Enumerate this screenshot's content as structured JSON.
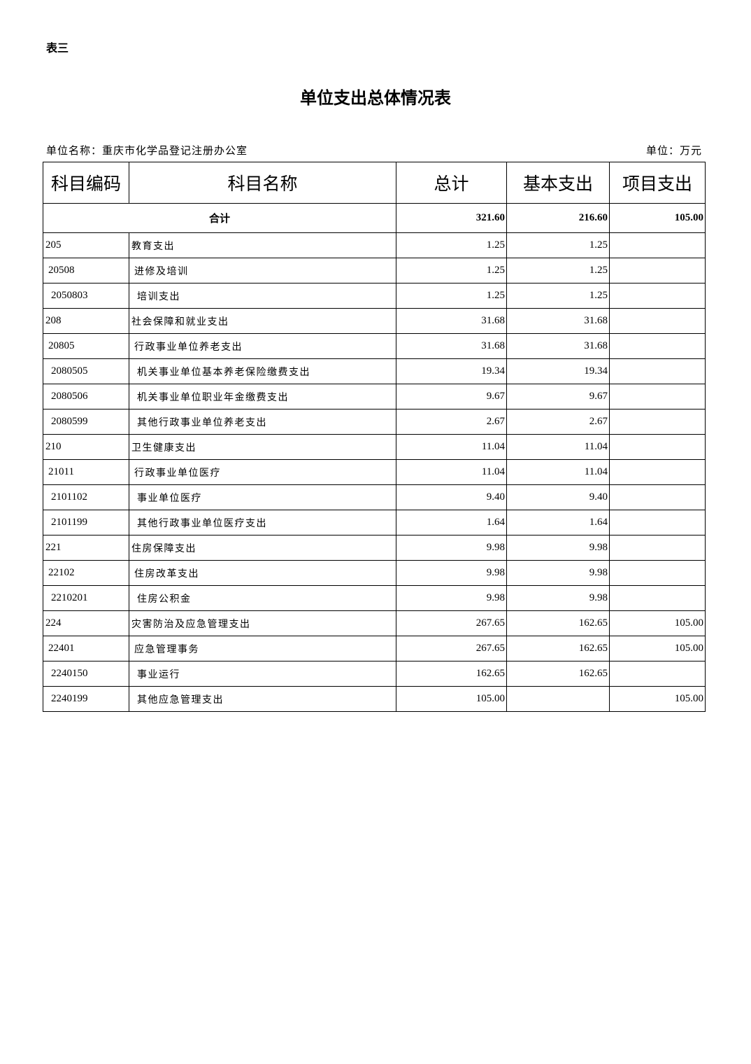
{
  "table_label": "表三",
  "title": "单位支出总体情况表",
  "unit_name": "单位名称：重庆市化学品登记注册办公室",
  "unit": "单位：万元",
  "headers": [
    "科目编码",
    "科目名称",
    "总计",
    "基本支出",
    "项目支出"
  ],
  "total": {
    "label": "合计",
    "total": "321.60",
    "basic": "216.60",
    "project": "105.00"
  },
  "rows": [
    {
      "code": "205",
      "name": "教育支出",
      "total": "1.25",
      "basic": "1.25",
      "project": ""
    },
    {
      "code": "20508",
      "name": "进修及培训",
      "total": "1.25",
      "basic": "1.25",
      "project": ""
    },
    {
      "code": "2050803",
      "name": "培训支出",
      "total": "1.25",
      "basic": "1.25",
      "project": ""
    },
    {
      "code": "208",
      "name": "社会保障和就业支出",
      "total": "31.68",
      "basic": "31.68",
      "project": ""
    },
    {
      "code": "20805",
      "name": "行政事业单位养老支出",
      "total": "31.68",
      "basic": "31.68",
      "project": ""
    },
    {
      "code": "2080505",
      "name": "机关事业单位基本养老保险缴费支出",
      "total": "19.34",
      "basic": "19.34",
      "project": ""
    },
    {
      "code": "2080506",
      "name": "机关事业单位职业年金缴费支出",
      "total": "9.67",
      "basic": "9.67",
      "project": ""
    },
    {
      "code": "2080599",
      "name": "其他行政事业单位养老支出",
      "total": "2.67",
      "basic": "2.67",
      "project": ""
    },
    {
      "code": "210",
      "name": "卫生健康支出",
      "total": "11.04",
      "basic": "11.04",
      "project": ""
    },
    {
      "code": "21011",
      "name": "行政事业单位医疗",
      "total": "11.04",
      "basic": "11.04",
      "project": ""
    },
    {
      "code": "2101102",
      "name": "事业单位医疗",
      "total": "9.40",
      "basic": "9.40",
      "project": ""
    },
    {
      "code": "2101199",
      "name": "其他行政事业单位医疗支出",
      "total": "1.64",
      "basic": "1.64",
      "project": ""
    },
    {
      "code": "221",
      "name": "住房保障支出",
      "total": "9.98",
      "basic": "9.98",
      "project": ""
    },
    {
      "code": "22102",
      "name": "住房改革支出",
      "total": "9.98",
      "basic": "9.98",
      "project": ""
    },
    {
      "code": "2210201",
      "name": "住房公积金",
      "total": "9.98",
      "basic": "9.98",
      "project": ""
    },
    {
      "code": "224",
      "name": "灾害防治及应急管理支出",
      "total": "267.65",
      "basic": "162.65",
      "project": "105.00"
    },
    {
      "code": "22401",
      "name": "应急管理事务",
      "total": "267.65",
      "basic": "162.65",
      "project": "105.00"
    },
    {
      "code": "2240150",
      "name": "事业运行",
      "total": "162.65",
      "basic": "162.65",
      "project": ""
    },
    {
      "code": "2240199",
      "name": "其他应急管理支出",
      "total": "105.00",
      "basic": "",
      "project": "105.00"
    }
  ]
}
